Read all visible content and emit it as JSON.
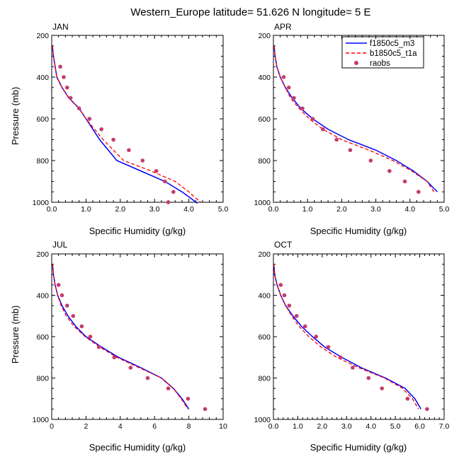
{
  "figure_title": "Western_Europe  latitude= 51.626 N longitude= 5 E",
  "legend": [
    {
      "label": "f1850c5_m3",
      "color": "#0000ff",
      "style": "solid"
    },
    {
      "label": "b1850c5_t1a",
      "color": "#ff0000",
      "style": "dashed"
    },
    {
      "label": "raobs",
      "color": "#c43c6c",
      "style": "marker"
    }
  ],
  "chart_data": [
    {
      "type": "line",
      "title": "JAN",
      "xlabel": "Specific Humidity (g/kg)",
      "ylabel": "Pressure (mb)",
      "xlim": [
        0,
        5
      ],
      "ylim": [
        1000,
        200
      ],
      "xticks": [
        0,
        1,
        2,
        3,
        4,
        5
      ],
      "xtick_labels": [
        "0.0",
        "1.0",
        "2.0",
        "3.0",
        "4.0",
        "5.0"
      ],
      "yticks": [
        200,
        400,
        600,
        800,
        1000
      ],
      "ytick_labels": [
        "200",
        "400",
        "600",
        "800",
        "1000"
      ],
      "series": [
        {
          "name": "f1850c5_m3",
          "x": [
            0.02,
            0.05,
            0.1,
            0.15,
            0.3,
            0.5,
            0.8,
            1.0,
            1.4,
            1.9,
            2.6,
            3.3,
            3.8,
            4.05,
            4.25
          ],
          "y": [
            250,
            300,
            350,
            400,
            450,
            500,
            550,
            600,
            700,
            800,
            850,
            900,
            950,
            980,
            1005
          ]
        },
        {
          "name": "b1850c5_t1a",
          "x": [
            0.02,
            0.05,
            0.1,
            0.15,
            0.3,
            0.5,
            0.8,
            1.0,
            1.5,
            2.1,
            2.9,
            3.6,
            4.0,
            4.2,
            4.35
          ],
          "y": [
            250,
            300,
            350,
            400,
            450,
            500,
            550,
            600,
            700,
            800,
            850,
            900,
            950,
            980,
            1000
          ]
        },
        {
          "name": "raobs",
          "x": [
            0.25,
            0.35,
            0.45,
            0.55,
            0.8,
            1.1,
            1.45,
            1.8,
            2.25,
            2.65,
            3.05,
            3.3,
            3.55,
            3.4
          ],
          "y": [
            350,
            400,
            450,
            500,
            550,
            600,
            650,
            700,
            750,
            800,
            850,
            900,
            950,
            1000
          ]
        }
      ]
    },
    {
      "type": "line",
      "title": "APR",
      "xlabel": "Specific Humidity (g/kg)",
      "ylabel": "",
      "xlim": [
        0,
        5
      ],
      "ylim": [
        1000,
        200
      ],
      "xticks": [
        0,
        1,
        2,
        3,
        4,
        5
      ],
      "xtick_labels": [
        "0.0",
        "1.0",
        "2.0",
        "3.0",
        "4.0",
        "5.0"
      ],
      "yticks": [
        200,
        400,
        600,
        800,
        1000
      ],
      "ytick_labels": [
        "200",
        "400",
        "600",
        "800",
        "1000"
      ],
      "series": [
        {
          "name": "f1850c5_m3",
          "x": [
            0.02,
            0.05,
            0.1,
            0.2,
            0.35,
            0.55,
            0.8,
            1.15,
            1.6,
            2.2,
            3.0,
            3.6,
            4.1,
            4.5,
            4.8
          ],
          "y": [
            250,
            300,
            350,
            400,
            450,
            500,
            550,
            600,
            650,
            700,
            750,
            800,
            850,
            900,
            950
          ]
        },
        {
          "name": "b1850c5_t1a",
          "x": [
            0.02,
            0.05,
            0.1,
            0.2,
            0.35,
            0.5,
            0.75,
            1.05,
            1.45,
            2.0,
            2.8,
            3.5,
            4.05,
            4.5,
            4.7
          ],
          "y": [
            250,
            300,
            350,
            400,
            450,
            500,
            550,
            600,
            650,
            700,
            750,
            800,
            850,
            900,
            950
          ]
        },
        {
          "name": "raobs",
          "x": [
            0.3,
            0.45,
            0.6,
            0.85,
            1.15,
            1.45,
            1.85,
            2.25,
            2.85,
            3.4,
            3.85,
            4.25
          ],
          "y": [
            400,
            450,
            500,
            550,
            600,
            650,
            700,
            750,
            800,
            850,
            900,
            950
          ]
        }
      ]
    },
    {
      "type": "line",
      "title": "JUL",
      "xlabel": "Specific Humidity (g/kg)",
      "ylabel": "Pressure (mb)",
      "xlim": [
        0,
        10
      ],
      "ylim": [
        1000,
        200
      ],
      "xticks": [
        0,
        2,
        4,
        6,
        8,
        10
      ],
      "xtick_labels": [
        "0",
        "2",
        "4",
        "6",
        "8",
        "10"
      ],
      "yticks": [
        200,
        400,
        600,
        800,
        1000
      ],
      "ytick_labels": [
        "200",
        "400",
        "600",
        "800",
        "1000"
      ],
      "series": [
        {
          "name": "f1850c5_m3",
          "x": [
            0.05,
            0.1,
            0.2,
            0.35,
            0.6,
            0.95,
            1.4,
            2.0,
            2.9,
            3.9,
            5.2,
            6.4,
            7.1,
            7.6,
            8.0
          ],
          "y": [
            250,
            300,
            350,
            400,
            450,
            500,
            550,
            600,
            650,
            700,
            750,
            800,
            850,
            900,
            950
          ]
        },
        {
          "name": "b1850c5_t1a",
          "x": [
            0.05,
            0.1,
            0.2,
            0.35,
            0.55,
            0.85,
            1.3,
            1.95,
            2.8,
            3.8,
            5.1,
            6.4,
            7.1,
            7.55,
            7.95
          ],
          "y": [
            250,
            300,
            350,
            400,
            450,
            500,
            550,
            600,
            650,
            700,
            750,
            800,
            850,
            900,
            950
          ]
        },
        {
          "name": "raobs",
          "x": [
            0.4,
            0.6,
            0.9,
            1.25,
            1.75,
            2.25,
            2.75,
            3.65,
            4.6,
            5.6,
            6.8,
            7.95,
            8.95
          ],
          "y": [
            350,
            400,
            450,
            500,
            550,
            600,
            650,
            700,
            750,
            800,
            850,
            900,
            950
          ]
        }
      ]
    },
    {
      "type": "line",
      "title": "OCT",
      "xlabel": "Specific Humidity (g/kg)",
      "ylabel": "",
      "xlim": [
        0,
        7
      ],
      "ylim": [
        1000,
        200
      ],
      "xticks": [
        0,
        1,
        2,
        3,
        4,
        5,
        6,
        7
      ],
      "xtick_labels": [
        "0.0",
        "1.0",
        "2.0",
        "3.0",
        "4.0",
        "5.0",
        "6.0",
        "7.0"
      ],
      "yticks": [
        200,
        400,
        600,
        800,
        1000
      ],
      "ytick_labels": [
        "200",
        "400",
        "600",
        "800",
        "1000"
      ],
      "series": [
        {
          "name": "f1850c5_m3",
          "x": [
            0.02,
            0.05,
            0.15,
            0.3,
            0.5,
            0.8,
            1.15,
            1.6,
            2.1,
            2.8,
            3.6,
            4.6,
            5.4,
            5.8,
            6.05
          ],
          "y": [
            250,
            300,
            350,
            400,
            450,
            500,
            550,
            600,
            650,
            700,
            750,
            800,
            850,
            900,
            950
          ]
        },
        {
          "name": "b1850c5_t1a",
          "x": [
            0.02,
            0.05,
            0.15,
            0.3,
            0.5,
            0.75,
            1.05,
            1.45,
            1.95,
            2.6,
            3.5,
            4.55,
            5.3,
            5.7,
            5.95
          ],
          "y": [
            250,
            300,
            350,
            400,
            450,
            500,
            550,
            600,
            650,
            700,
            750,
            800,
            850,
            900,
            950
          ]
        },
        {
          "name": "raobs",
          "x": [
            0.3,
            0.45,
            0.65,
            0.95,
            1.3,
            1.75,
            2.25,
            2.75,
            3.25,
            3.9,
            4.45,
            5.5,
            6.3
          ],
          "y": [
            350,
            400,
            450,
            500,
            550,
            600,
            650,
            700,
            750,
            800,
            850,
            900,
            950
          ]
        }
      ]
    }
  ]
}
